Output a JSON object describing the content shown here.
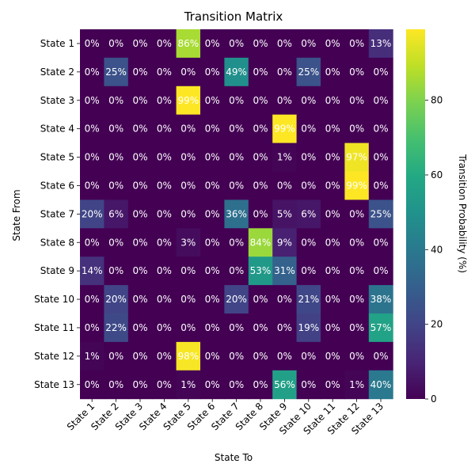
{
  "chart_data": {
    "type": "heatmap",
    "title": "Transition Matrix",
    "xlabel": "State To",
    "ylabel": "State From",
    "colorbar_label": "Transition Probability (%)",
    "colormap": "viridis",
    "value_range": [
      0,
      99
    ],
    "colorbar_ticks": [
      0,
      20,
      40,
      60,
      80
    ],
    "rows": [
      "State 1",
      "State 2",
      "State 3",
      "State 4",
      "State 5",
      "State 6",
      "State 7",
      "State 8",
      "State 9",
      "State 10",
      "State 11",
      "State 12",
      "State 13"
    ],
    "cols": [
      "State 1",
      "State 2",
      "State 3",
      "State 4",
      "State 5",
      "State 6",
      "State 7",
      "State 8",
      "State 9",
      "State 10",
      "State 11",
      "State 12",
      "State 13"
    ],
    "values": [
      [
        0,
        0,
        0,
        0,
        86,
        0,
        0,
        0,
        0,
        0,
        0,
        0,
        13
      ],
      [
        0,
        25,
        0,
        0,
        0,
        0,
        49,
        0,
        0,
        25,
        0,
        0,
        0
      ],
      [
        0,
        0,
        0,
        0,
        99,
        0,
        0,
        0,
        0,
        0,
        0,
        0,
        0
      ],
      [
        0,
        0,
        0,
        0,
        0,
        0,
        0,
        0,
        99,
        0,
        0,
        0,
        0
      ],
      [
        0,
        0,
        0,
        0,
        0,
        0,
        0,
        0,
        1,
        0,
        0,
        97,
        0
      ],
      [
        0,
        0,
        0,
        0,
        0,
        0,
        0,
        0,
        0,
        0,
        0,
        99,
        0
      ],
      [
        20,
        6,
        0,
        0,
        0,
        0,
        36,
        0,
        5,
        6,
        0,
        0,
        25
      ],
      [
        0,
        0,
        0,
        0,
        3,
        0,
        0,
        84,
        9,
        0,
        0,
        0,
        0
      ],
      [
        14,
        0,
        0,
        0,
        0,
        0,
        0,
        53,
        31,
        0,
        0,
        0,
        0
      ],
      [
        0,
        20,
        0,
        0,
        0,
        0,
        20,
        0,
        0,
        21,
        0,
        0,
        38
      ],
      [
        0,
        22,
        0,
        0,
        0,
        0,
        0,
        0,
        0,
        19,
        0,
        0,
        57
      ],
      [
        1,
        0,
        0,
        0,
        98,
        0,
        0,
        0,
        0,
        0,
        0,
        0,
        0
      ],
      [
        0,
        0,
        0,
        0,
        1,
        0,
        0,
        0,
        56,
        0,
        0,
        1,
        40
      ]
    ],
    "value_suffix": "%",
    "label_color_light": "#ffffff",
    "label_color_dark": "#ffffff"
  }
}
